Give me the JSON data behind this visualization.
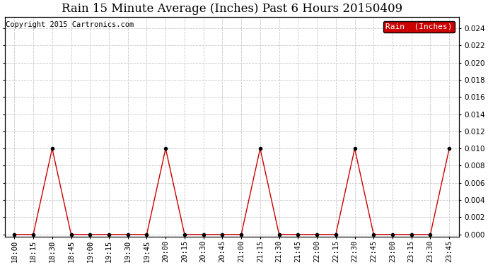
{
  "title": "Rain 15 Minute Average (Inches) Past 6 Hours 20150409",
  "copyright": "Copyright 2015 Cartronics.com",
  "legend_label": "Rain  (Inches)",
  "line_color": "#cc0000",
  "background_color": "#ffffff",
  "grid_color": "#c8c8c8",
  "ylim_min": -0.0003,
  "ylim_max": 0.0253,
  "yticks": [
    0.0,
    0.002,
    0.004,
    0.006,
    0.008,
    0.01,
    0.012,
    0.014,
    0.016,
    0.018,
    0.02,
    0.022,
    0.024
  ],
  "x_labels": [
    "18:00",
    "18:15",
    "18:30",
    "18:45",
    "19:00",
    "19:15",
    "19:30",
    "19:45",
    "20:00",
    "20:15",
    "20:30",
    "20:45",
    "21:00",
    "21:15",
    "21:30",
    "21:45",
    "22:00",
    "22:15",
    "22:30",
    "22:45",
    "23:00",
    "23:15",
    "23:30",
    "23:45"
  ],
  "y_values": [
    0.0,
    0.0,
    0.01,
    0.0,
    0.0,
    0.0,
    0.0,
    0.0,
    0.01,
    0.0,
    0.0,
    0.0,
    0.0,
    0.01,
    0.0,
    0.0,
    0.0,
    0.0,
    0.01,
    0.0,
    0.0,
    0.0,
    0.0,
    0.01
  ],
  "title_fontsize": 12,
  "tick_fontsize": 7.5,
  "copyright_fontsize": 7.5,
  "legend_fontsize": 8,
  "legend_bg": "#cc0000",
  "legend_text_color": "#ffffff"
}
